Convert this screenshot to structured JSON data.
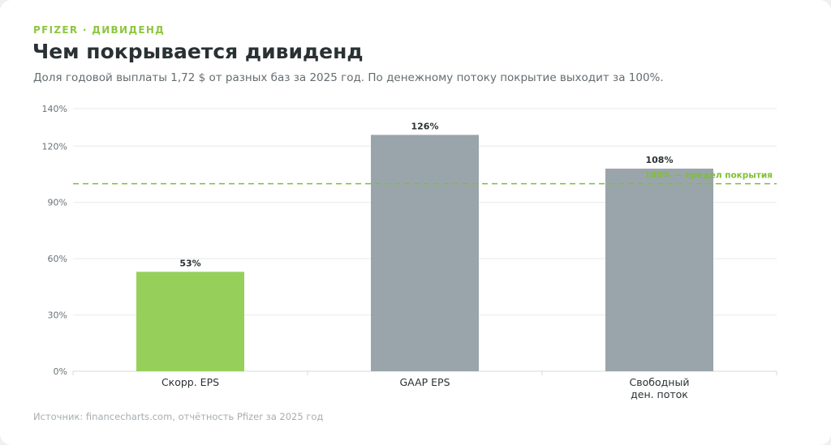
{
  "header": {
    "eyebrow": "PFIZER · ДИВИДЕНД",
    "title": "Чем покрывается дивиденд",
    "subtitle": "Доля годовой выплаты 1,72 $ от разных баз за 2025 год. По денежному потоку покрытие выходит за 100%."
  },
  "footer": {
    "source": "Источник: financecharts.com, отчётность Pfizer за 2025 год"
  },
  "colors": {
    "highlight": "#97cf5b",
    "neutral": "#9aa5ab",
    "reference": "#7fbf36",
    "grid": "#e6e9eb"
  },
  "chart_data": {
    "type": "bar",
    "categories": [
      [
        "Скорр. EPS"
      ],
      [
        "GAAP EPS"
      ],
      [
        "Свободный",
        "ден. поток"
      ]
    ],
    "values": [
      53,
      126,
      108
    ],
    "value_labels": [
      "53%",
      "126%",
      "108%"
    ],
    "highlighted": [
      true,
      false,
      false
    ],
    "y_ticks": [
      0,
      30,
      60,
      90,
      120,
      140
    ],
    "y_tick_labels": [
      "0%",
      "30%",
      "60%",
      "90%",
      "120%",
      "140%"
    ],
    "ylim": [
      0,
      140
    ],
    "reference_line": {
      "value": 100,
      "label": "100% — предел покрытия"
    },
    "grid": true,
    "legend": "none"
  }
}
